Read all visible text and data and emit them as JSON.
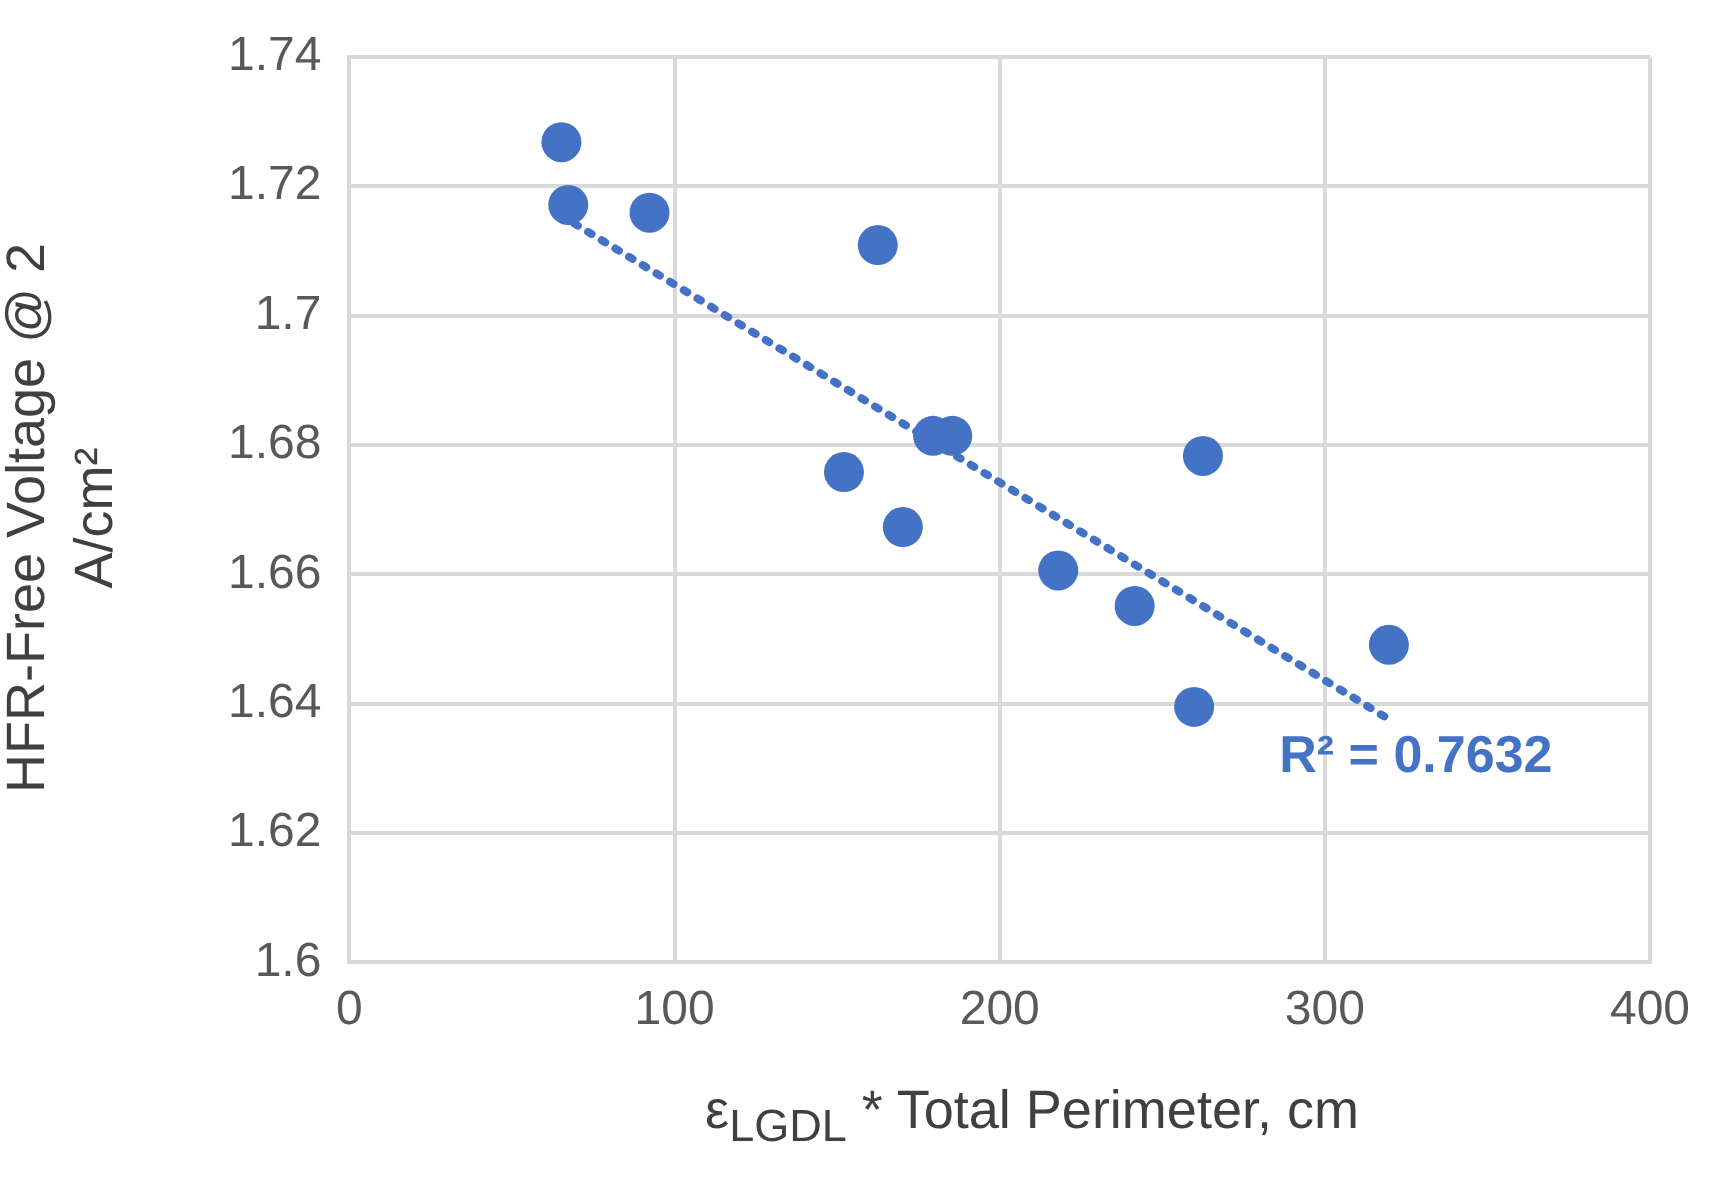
{
  "chart_data": {
    "type": "scatter",
    "xlabel": "ε$_{LGDL}$ * Total Perimeter, cm",
    "ylabel": "HFR-Free Voltage @ 2 A/cm²",
    "xlim": [
      0,
      400
    ],
    "xticks": [
      0,
      100,
      200,
      300,
      400
    ],
    "ylim": [
      1.6,
      1.74
    ],
    "yticks": [
      1.6,
      1.62,
      1.64,
      1.66,
      1.68,
      1.7,
      1.72,
      1.74
    ],
    "grid": true,
    "legend": false,
    "marker": "circle",
    "series": [
      {
        "color": "#4472c4",
        "x": [
          65.2,
          67.3,
          92.3,
          162.5,
          179.5,
          185.4,
          152.1,
          170.2,
          262.5,
          218,
          241.5,
          319.7,
          259.8
        ],
        "values": [
          1.7268,
          1.7171,
          1.7159,
          1.7109,
          1.6814,
          1.6814,
          1.6758,
          1.6673,
          1.6783,
          1.6606,
          1.6551,
          1.6491,
          1.6395
        ]
      },
      {
        "type": "line",
        "color": "#4472c4",
        "x": [
          65,
          320
        ],
        "values": [
          1.7155,
          1.6375
        ],
        "line_style": "dotted",
        "marker": "none"
      }
    ],
    "annotations": [
      "R² = 0.7632"
    ]
  }
}
